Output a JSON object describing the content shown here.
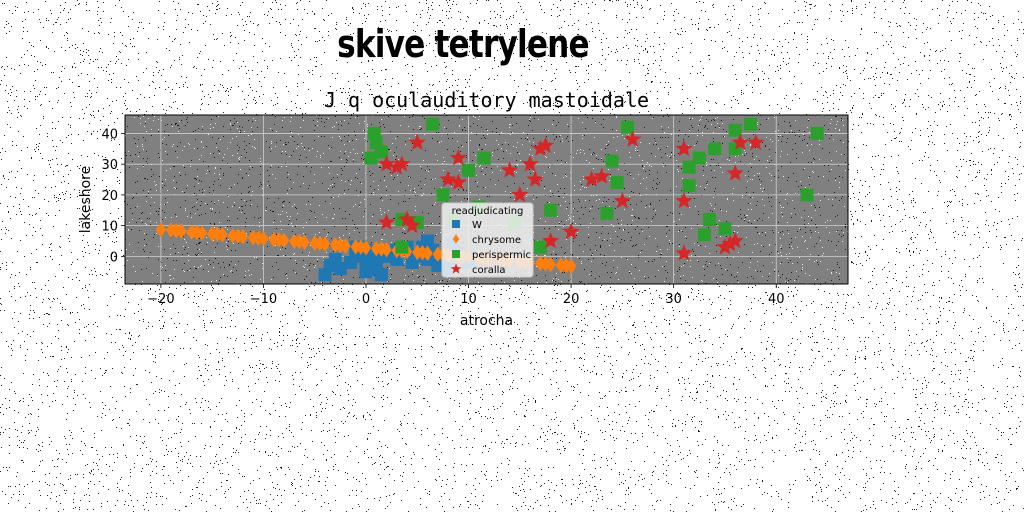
{
  "suptitle": "skive tetrylene",
  "chart_data": {
    "type": "scatter",
    "title": "J q oculauditory mastoidale",
    "xlabel": "atrocha",
    "ylabel": "lakeshore",
    "xlim": [
      -23.5,
      47
    ],
    "ylim": [
      -9,
      46
    ],
    "xticks": [
      -20,
      -10,
      0,
      10,
      20,
      30,
      40
    ],
    "yticks": [
      0,
      10,
      20,
      30,
      40
    ],
    "grid": true,
    "legend": {
      "title": "readjudicating",
      "placement": "center"
    },
    "series": [
      {
        "name": "W",
        "marker": "square",
        "color": "#1f77b4",
        "points": [
          [
            -4,
            -6
          ],
          [
            -3.5,
            -3
          ],
          [
            -3,
            -1
          ],
          [
            -2.5,
            -4
          ],
          [
            -1.5,
            -2
          ],
          [
            -1,
            0
          ],
          [
            -1,
            3
          ],
          [
            0,
            -5
          ],
          [
            0,
            2
          ],
          [
            0.5,
            -3
          ],
          [
            0,
            -2
          ],
          [
            1,
            -4
          ],
          [
            1,
            -1
          ],
          [
            1.5,
            -6
          ],
          [
            2,
            0
          ],
          [
            3,
            -1
          ],
          [
            3,
            2
          ],
          [
            4,
            3
          ],
          [
            4.5,
            -2
          ],
          [
            5,
            0
          ],
          [
            5.5,
            3
          ],
          [
            6,
            -1
          ],
          [
            6.5,
            2
          ],
          [
            7,
            -3
          ],
          [
            7.5,
            0
          ],
          [
            8,
            -4
          ],
          [
            8.5,
            4
          ],
          [
            9,
            1
          ],
          [
            10,
            0
          ],
          [
            10,
            -2
          ],
          [
            -0.5,
            3
          ],
          [
            2.5,
            1
          ],
          [
            6,
            5
          ]
        ]
      },
      {
        "name": "chrysome",
        "marker": "diamond",
        "color": "#ff7f0e",
        "points": [
          [
            -20,
            8.7
          ],
          [
            -19,
            8.5
          ],
          [
            -18,
            8.2
          ],
          [
            -17,
            7.9
          ],
          [
            -16,
            7.6
          ],
          [
            -15,
            7.3
          ],
          [
            -14,
            7.0
          ],
          [
            -13,
            6.7
          ],
          [
            -12,
            6.4
          ],
          [
            -11,
            6.1
          ],
          [
            -10,
            5.8
          ],
          [
            -9,
            5.5
          ],
          [
            -8,
            5.2
          ],
          [
            -7,
            4.9
          ],
          [
            -6,
            4.6
          ],
          [
            -5,
            4.3
          ],
          [
            -4,
            4.0
          ],
          [
            -3,
            3.7
          ],
          [
            -2,
            3.4
          ],
          [
            -1,
            3.1
          ],
          [
            0,
            2.8
          ],
          [
            1,
            2.5
          ],
          [
            2,
            2.2
          ],
          [
            3,
            1.9
          ],
          [
            4,
            1.6
          ],
          [
            5,
            1.3
          ],
          [
            6,
            1.0
          ],
          [
            7,
            0.7
          ],
          [
            8,
            0.4
          ],
          [
            9,
            0.1
          ],
          [
            10,
            -0.2
          ],
          [
            11,
            -0.5
          ],
          [
            12,
            -0.8
          ],
          [
            13,
            -1.1
          ],
          [
            14,
            -1.4
          ],
          [
            15,
            -1.7
          ],
          [
            16,
            -2.0
          ],
          [
            17,
            -2.3
          ],
          [
            18,
            -2.6
          ],
          [
            19,
            -2.9
          ],
          [
            20,
            -3.2
          ],
          [
            -18.5,
            8.4
          ],
          [
            -16.5,
            7.8
          ],
          [
            -14.5,
            7.2
          ],
          [
            -12.5,
            6.6
          ],
          [
            -10.5,
            6.0
          ],
          [
            -8.5,
            5.4
          ],
          [
            -6.5,
            4.8
          ],
          [
            -4.5,
            4.2
          ],
          [
            -2.5,
            3.6
          ],
          [
            -0.5,
            3.0
          ],
          [
            1.5,
            2.4
          ],
          [
            3.5,
            1.8
          ],
          [
            5.5,
            1.2
          ],
          [
            7.5,
            0.6
          ],
          [
            9.5,
            0
          ],
          [
            11.5,
            -0.6
          ],
          [
            13.5,
            -1.2
          ],
          [
            15.5,
            -1.8
          ],
          [
            17.5,
            -2.4
          ],
          [
            19.5,
            -3.0
          ]
        ]
      },
      {
        "name": "perispermic",
        "marker": "square",
        "color": "#2ca02c",
        "points": [
          [
            0.5,
            32
          ],
          [
            0.8,
            40
          ],
          [
            1,
            37
          ],
          [
            1.5,
            34
          ],
          [
            3.5,
            3
          ],
          [
            3.5,
            12
          ],
          [
            5,
            11
          ],
          [
            6.5,
            43
          ],
          [
            7.5,
            20
          ],
          [
            8.5,
            12
          ],
          [
            10,
            28
          ],
          [
            11,
            16
          ],
          [
            11.5,
            32
          ],
          [
            14.5,
            11
          ],
          [
            17,
            3
          ],
          [
            18,
            15
          ],
          [
            23.5,
            14
          ],
          [
            24,
            31
          ],
          [
            24.5,
            24
          ],
          [
            25.5,
            42
          ],
          [
            31.5,
            29
          ],
          [
            31.5,
            23
          ],
          [
            32.5,
            32
          ],
          [
            33,
            7
          ],
          [
            33.5,
            12
          ],
          [
            34,
            35
          ],
          [
            35,
            9
          ],
          [
            36,
            41
          ],
          [
            36,
            35
          ],
          [
            37.5,
            43
          ],
          [
            43,
            20
          ],
          [
            44,
            40
          ]
        ]
      },
      {
        "name": "coralla",
        "marker": "star",
        "color": "#d62728",
        "points": [
          [
            2,
            11
          ],
          [
            2,
            30
          ],
          [
            3,
            29
          ],
          [
            3.5,
            30
          ],
          [
            4,
            12
          ],
          [
            4.5,
            10
          ],
          [
            5,
            37
          ],
          [
            8,
            25
          ],
          [
            9,
            24
          ],
          [
            9,
            32
          ],
          [
            14,
            28
          ],
          [
            15,
            20
          ],
          [
            16,
            30
          ],
          [
            16.5,
            25
          ],
          [
            17,
            35
          ],
          [
            17.5,
            36
          ],
          [
            18,
            5
          ],
          [
            20,
            8
          ],
          [
            22,
            25
          ],
          [
            23,
            26
          ],
          [
            25,
            18
          ],
          [
            26,
            38
          ],
          [
            31,
            1
          ],
          [
            31,
            35
          ],
          [
            31,
            18
          ],
          [
            35,
            3
          ],
          [
            35.5,
            4
          ],
          [
            36,
            5
          ],
          [
            36,
            27
          ],
          [
            36.5,
            37
          ],
          [
            38,
            37
          ]
        ]
      }
    ]
  }
}
